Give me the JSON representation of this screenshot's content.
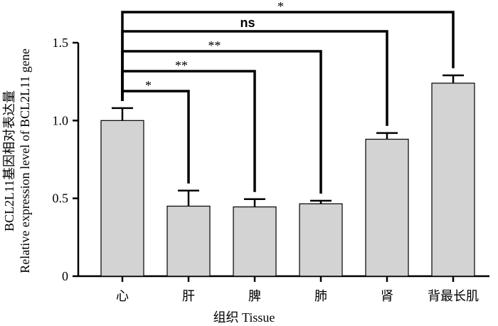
{
  "chart_data": {
    "type": "bar",
    "categories": [
      "心",
      "肝",
      "脾",
      "肺",
      "肾",
      "背最长肌"
    ],
    "values": [
      1.0,
      0.45,
      0.445,
      0.465,
      0.88,
      1.24
    ],
    "errors": [
      0.08,
      0.1,
      0.05,
      0.02,
      0.04,
      0.05
    ],
    "xlabel": "组织 Tissue",
    "ylabel_line1": "Relative expression level of BCL2L11 gene",
    "ylabel_line2": "BCL2L11基因相对表达量",
    "ylim": [
      0,
      1.5
    ],
    "yticks": [
      "0",
      "0.5",
      "1.0",
      "1.5"
    ],
    "bar_color": "#d3d3d3",
    "significance": [
      {
        "from": 0,
        "to": 1,
        "label": "*"
      },
      {
        "from": 0,
        "to": 2,
        "label": "**"
      },
      {
        "from": 0,
        "to": 3,
        "label": "**"
      },
      {
        "from": 0,
        "to": 4,
        "label": "ns"
      },
      {
        "from": 0,
        "to": 5,
        "label": "*"
      }
    ]
  }
}
